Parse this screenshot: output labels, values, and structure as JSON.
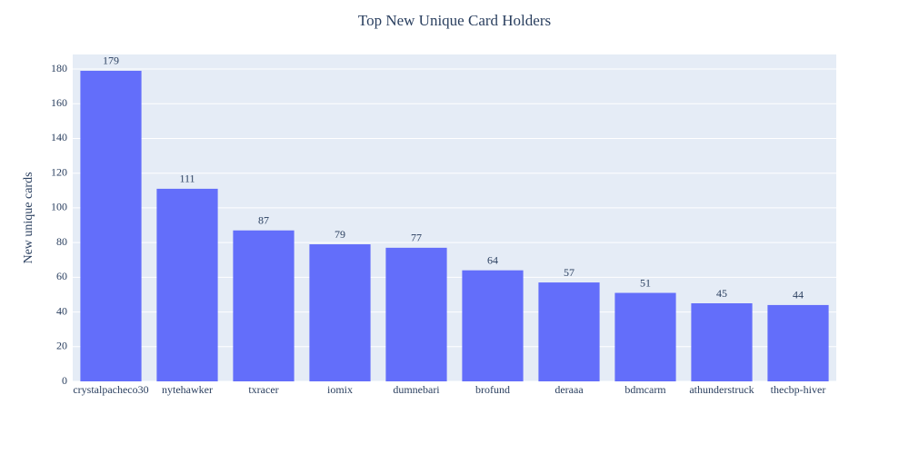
{
  "chart_data": {
    "type": "bar",
    "title": "Top New Unique Card Holders",
    "y_label": "New unique cards",
    "categories": [
      "crystalpacheco30",
      "nytehawker",
      "txracer",
      "iomix",
      "dumnebari",
      "brofund",
      "deraaa",
      "bdmcarm",
      "athunderstruck",
      "thecbp-hiver"
    ],
    "values": [
      179,
      111,
      87,
      79,
      77,
      64,
      57,
      51,
      45,
      44
    ],
    "color": "#636efa",
    "ylim": [
      0,
      188.4
    ],
    "yticks": [
      0,
      20,
      40,
      60,
      80,
      100,
      120,
      140,
      160,
      180
    ],
    "grid": true
  }
}
